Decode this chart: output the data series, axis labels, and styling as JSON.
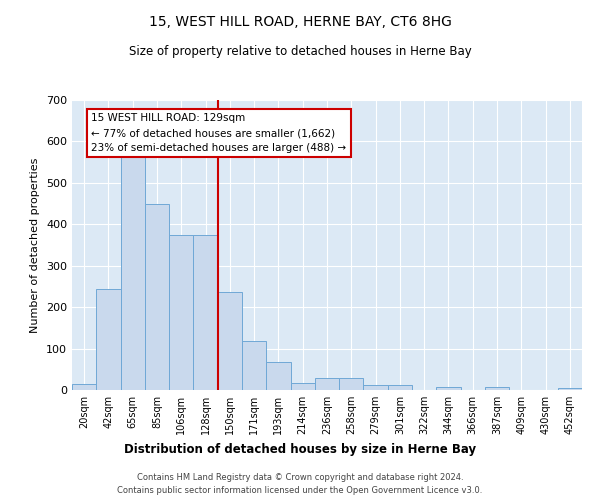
{
  "title": "15, WEST HILL ROAD, HERNE BAY, CT6 8HG",
  "subtitle": "Size of property relative to detached houses in Herne Bay",
  "xlabel": "Distribution of detached houses by size in Herne Bay",
  "ylabel": "Number of detached properties",
  "bar_color": "#c9d9ed",
  "bar_edgecolor": "#6fa8d6",
  "background_color": "#dce9f5",
  "annotation_box_color": "#ffffff",
  "annotation_border_color": "#cc0000",
  "vline_color": "#cc0000",
  "footer1": "Contains HM Land Registry data © Crown copyright and database right 2024.",
  "footer2": "Contains public sector information licensed under the Open Government Licence v3.0.",
  "annotation_line1": "15 WEST HILL ROAD: 129sqm",
  "annotation_line2": "← 77% of detached houses are smaller (1,662)",
  "annotation_line3": "23% of semi-detached houses are larger (488) →",
  "categories": [
    "20sqm",
    "42sqm",
    "65sqm",
    "85sqm",
    "106sqm",
    "128sqm",
    "150sqm",
    "171sqm",
    "193sqm",
    "214sqm",
    "236sqm",
    "258sqm",
    "279sqm",
    "301sqm",
    "322sqm",
    "344sqm",
    "366sqm",
    "387sqm",
    "409sqm",
    "430sqm",
    "452sqm"
  ],
  "values": [
    15,
    245,
    585,
    448,
    373,
    375,
    236,
    118,
    68,
    18,
    28,
    28,
    11,
    11,
    0,
    7,
    0,
    7,
    0,
    0,
    5
  ],
  "ylim": [
    0,
    700
  ],
  "yticks": [
    0,
    100,
    200,
    300,
    400,
    500,
    600,
    700
  ],
  "vline_x_index": 5.5
}
